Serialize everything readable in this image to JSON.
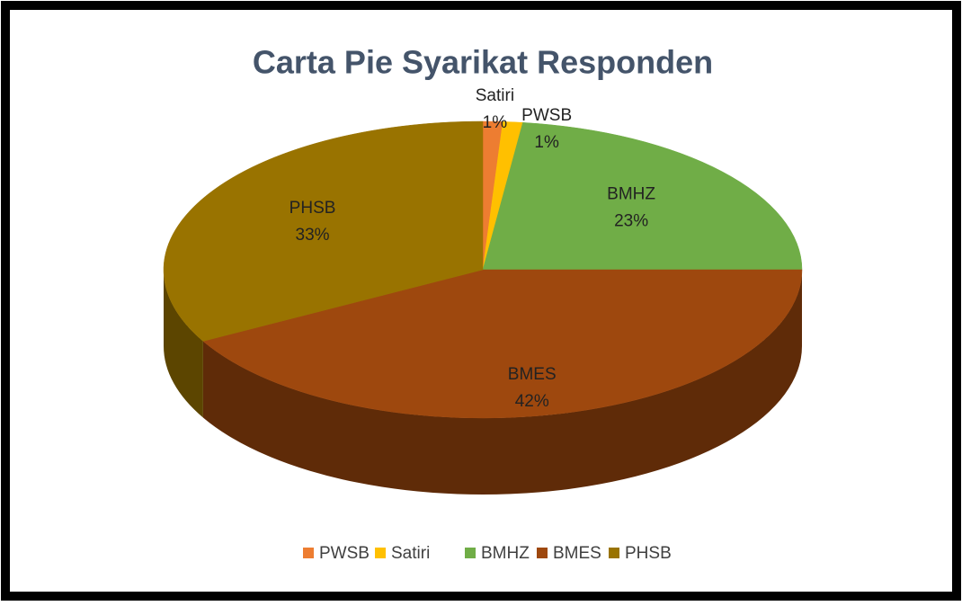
{
  "chart_data": {
    "type": "pie",
    "title": "Carta Pie Syarikat Responden",
    "categories": [
      "PWSB",
      "Satiri",
      "BMHZ",
      "BMES",
      "PHSB"
    ],
    "values": [
      1,
      1,
      23,
      42,
      33
    ],
    "value_labels": [
      "1%",
      "1%",
      "23%",
      "42%",
      "33%"
    ],
    "colors": [
      "#ED7D31",
      "#FFC000",
      "#70AD47",
      "#9E480E",
      "#997300"
    ],
    "legend": "bottom"
  }
}
